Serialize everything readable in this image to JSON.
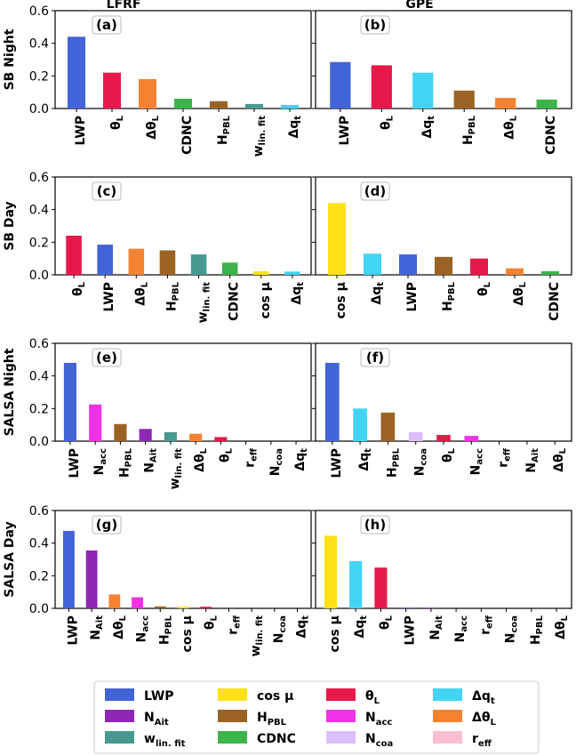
{
  "column_titles": [
    "LFRF",
    "GPE"
  ],
  "row_labels": [
    "SB Night",
    "SB Day",
    "SALSA Night",
    "SALSA Day"
  ],
  "var_labels": {
    "LWP": {
      "main": "LWP",
      "sub": ""
    },
    "thL": {
      "main": "θ",
      "sub": "L"
    },
    "dthL": {
      "main": "Δθ",
      "sub": "L"
    },
    "CDNC": {
      "main": "CDNC",
      "sub": ""
    },
    "HPBL": {
      "main": "H",
      "sub": "PBL"
    },
    "wlin": {
      "main": "w",
      "sub": "lin. fit"
    },
    "dqt": {
      "main": "Δq",
      "sub": "t"
    },
    "cosmu": {
      "main": "cos μ",
      "sub": ""
    },
    "Nacc": {
      "main": "N",
      "sub": "acc"
    },
    "NAit": {
      "main": "N",
      "sub": "Ait"
    },
    "reff": {
      "main": "r",
      "sub": "eff"
    },
    "Ncoa": {
      "main": "N",
      "sub": "coa"
    }
  },
  "colors": {
    "LWP": "#4363d8",
    "NAit": "#8f27b6",
    "wlin": "#469990",
    "cosmu": "#ffe119",
    "HPBL": "#9a6324",
    "CDNC": "#3cb44b",
    "thL": "#e6194b",
    "Nacc": "#f032e6",
    "Ncoa": "#dcbeff",
    "dqt": "#42d4f4",
    "dthL": "#f58231",
    "reff": "#fabed4"
  },
  "legend": [
    {
      "key": "LWP"
    },
    {
      "key": "cosmu"
    },
    {
      "key": "thL"
    },
    {
      "key": "dqt"
    },
    {
      "key": "NAit"
    },
    {
      "key": "HPBL"
    },
    {
      "key": "Nacc"
    },
    {
      "key": "dthL"
    },
    {
      "key": "wlin"
    },
    {
      "key": "CDNC"
    },
    {
      "key": "Ncoa"
    },
    {
      "key": "reff"
    }
  ],
  "chart_data": [
    {
      "type": "bar",
      "panel": "(a)",
      "ylim": [
        0,
        0.6
      ],
      "yticks": [
        "0.0",
        "0.2",
        "0.4",
        "0.6"
      ],
      "categories": [
        "LWP",
        "thL",
        "dthL",
        "CDNC",
        "HPBL",
        "wlin",
        "dqt"
      ],
      "values": [
        0.44,
        0.22,
        0.18,
        0.06,
        0.045,
        0.028,
        0.022
      ]
    },
    {
      "type": "bar",
      "panel": "(b)",
      "ylim": [
        0,
        0.6
      ],
      "categories": [
        "LWP",
        "thL",
        "dqt",
        "HPBL",
        "dthL",
        "CDNC"
      ],
      "values": [
        0.285,
        0.265,
        0.22,
        0.11,
        0.065,
        0.055
      ]
    },
    {
      "type": "bar",
      "panel": "(c)",
      "ylim": [
        0,
        0.6
      ],
      "yticks": [
        "0.0",
        "0.2",
        "0.4",
        "0.6"
      ],
      "categories": [
        "thL",
        "LWP",
        "dthL",
        "HPBL",
        "wlin",
        "CDNC",
        "cosmu",
        "dqt"
      ],
      "values": [
        0.24,
        0.185,
        0.16,
        0.15,
        0.125,
        0.075,
        0.022,
        0.02
      ]
    },
    {
      "type": "bar",
      "panel": "(d)",
      "ylim": [
        0,
        0.6
      ],
      "categories": [
        "cosmu",
        "dqt",
        "LWP",
        "HPBL",
        "thL",
        "dthL",
        "CDNC"
      ],
      "values": [
        0.44,
        0.13,
        0.125,
        0.11,
        0.1,
        0.04,
        0.022
      ]
    },
    {
      "type": "bar",
      "panel": "(e)",
      "ylim": [
        0,
        0.6
      ],
      "yticks": [
        "0.0",
        "0.2",
        "0.4",
        "0.6"
      ],
      "categories": [
        "LWP",
        "Nacc",
        "HPBL",
        "NAit",
        "wlin",
        "dthL",
        "thL",
        "reff",
        "Ncoa",
        "dqt"
      ],
      "values": [
        0.48,
        0.225,
        0.105,
        0.075,
        0.055,
        0.045,
        0.025,
        0.0,
        0.0,
        0.0
      ]
    },
    {
      "type": "bar",
      "panel": "(f)",
      "ylim": [
        0,
        0.6
      ],
      "categories": [
        "LWP",
        "dqt",
        "HPBL",
        "Ncoa",
        "thL",
        "Nacc",
        "reff",
        "NAit",
        "dthL"
      ],
      "values": [
        0.48,
        0.2,
        0.175,
        0.055,
        0.038,
        0.032,
        0.0,
        0.0,
        0.0
      ]
    },
    {
      "type": "bar",
      "panel": "(g)",
      "ylim": [
        0,
        0.6
      ],
      "yticks": [
        "0.0",
        "0.2",
        "0.4",
        "0.6"
      ],
      "categories": [
        "LWP",
        "NAit",
        "dthL",
        "Nacc",
        "HPBL",
        "cosmu",
        "thL",
        "reff",
        "wlin",
        "Ncoa",
        "dqt"
      ],
      "values": [
        0.475,
        0.355,
        0.085,
        0.068,
        0.012,
        0.01,
        0.01,
        0.0,
        0.0,
        0.0,
        0.0
      ]
    },
    {
      "type": "bar",
      "panel": "(h)",
      "ylim": [
        0,
        0.6
      ],
      "categories": [
        "cosmu",
        "dqt",
        "thL",
        "LWP",
        "NAit",
        "Nacc",
        "reff",
        "Ncoa",
        "HPBL",
        "dthL"
      ],
      "values": [
        0.445,
        0.29,
        0.25,
        0.005,
        0.004,
        0.0,
        0.0,
        0.0,
        0.0,
        0.0
      ]
    }
  ]
}
